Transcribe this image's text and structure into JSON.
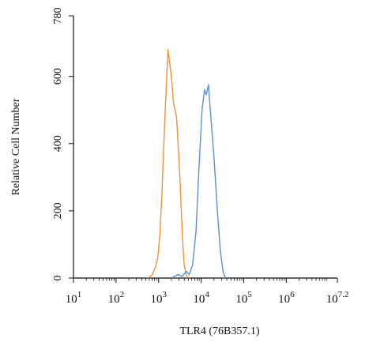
{
  "chart_data": {
    "type": "line",
    "xlabel": "TLR4 (76B357.1)",
    "ylabel": "Relative Cell Number",
    "x_scale": "log10",
    "xlim": [
      1,
      7.2
    ],
    "ylim": [
      0,
      780
    ],
    "x_ticks": [
      {
        "value": 1,
        "base": "10",
        "exp": "1"
      },
      {
        "value": 2,
        "base": "10",
        "exp": "2"
      },
      {
        "value": 3,
        "base": "10",
        "exp": "3"
      },
      {
        "value": 4,
        "base": "10",
        "exp": "4"
      },
      {
        "value": 5,
        "base": "10",
        "exp": "5"
      },
      {
        "value": 6,
        "base": "10",
        "exp": "6"
      },
      {
        "value": 7.2,
        "base": "10",
        "exp": "7.2"
      }
    ],
    "y_ticks": [
      {
        "value": 0,
        "label": "0"
      },
      {
        "value": 200,
        "label": "200"
      },
      {
        "value": 400,
        "label": "400"
      },
      {
        "value": 600,
        "label": "600"
      },
      {
        "value": 780,
        "label": "780"
      }
    ],
    "grid": false,
    "series": [
      {
        "color": "#f0923a",
        "points": [
          [
            2.75,
            0
          ],
          [
            2.85,
            10
          ],
          [
            2.92,
            30
          ],
          [
            2.98,
            60
          ],
          [
            3.03,
            130
          ],
          [
            3.08,
            260
          ],
          [
            3.13,
            420
          ],
          [
            3.18,
            570
          ],
          [
            3.22,
            680
          ],
          [
            3.25,
            650
          ],
          [
            3.3,
            600
          ],
          [
            3.35,
            520
          ],
          [
            3.42,
            480
          ],
          [
            3.5,
            300
          ],
          [
            3.56,
            120
          ],
          [
            3.6,
            40
          ],
          [
            3.65,
            8
          ],
          [
            3.7,
            0
          ]
        ]
      },
      {
        "color": "#5b8fd6",
        "points": [
          [
            3.3,
            0
          ],
          [
            3.45,
            10
          ],
          [
            3.55,
            5
          ],
          [
            3.65,
            20
          ],
          [
            3.72,
            10
          ],
          [
            3.8,
            40
          ],
          [
            3.88,
            140
          ],
          [
            3.95,
            330
          ],
          [
            4.02,
            500
          ],
          [
            4.08,
            560
          ],
          [
            4.12,
            545
          ],
          [
            4.17,
            575
          ],
          [
            4.22,
            490
          ],
          [
            4.3,
            360
          ],
          [
            4.38,
            200
          ],
          [
            4.45,
            80
          ],
          [
            4.52,
            15
          ],
          [
            4.58,
            0
          ]
        ]
      }
    ]
  }
}
